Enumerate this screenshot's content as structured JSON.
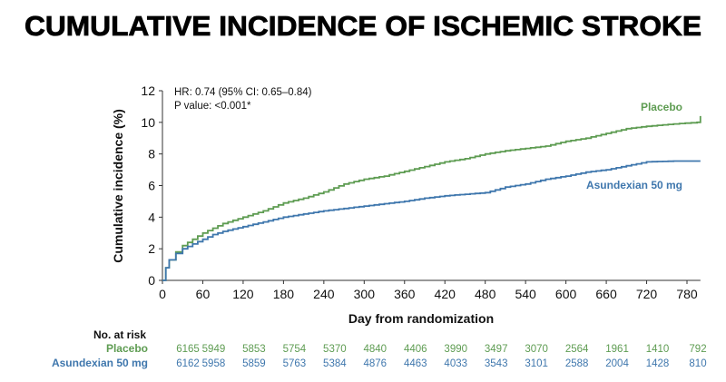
{
  "title": "CUMULATIVE INCIDENCE OF ISCHEMIC STROKE",
  "chart_data": {
    "type": "line",
    "title": "CUMULATIVE INCIDENCE OF ISCHEMIC STROKE",
    "xlabel": "Day from randomization",
    "ylabel": "Cumulative incidence (%)",
    "xlim": [
      0,
      800
    ],
    "ylim": [
      0,
      12
    ],
    "xticks": [
      0,
      60,
      120,
      180,
      240,
      300,
      360,
      420,
      480,
      540,
      600,
      660,
      720,
      780
    ],
    "yticks": [
      0,
      2,
      4,
      6,
      8,
      10,
      12
    ],
    "grid": false,
    "step": true,
    "annotations": [
      "HR: 0.74 (95% CI: 0.65–0.84)",
      "P value: <0.001*"
    ],
    "series": [
      {
        "name": "Placebo",
        "color": "#5e9c52",
        "x": [
          0,
          5,
          10,
          20,
          30,
          45,
          60,
          75,
          90,
          120,
          150,
          180,
          210,
          240,
          270,
          300,
          330,
          360,
          390,
          420,
          450,
          480,
          510,
          540,
          570,
          600,
          630,
          660,
          690,
          720,
          760,
          795,
          800
        ],
        "y": [
          0,
          0.8,
          1.3,
          1.8,
          2.2,
          2.6,
          3.0,
          3.3,
          3.6,
          4.0,
          4.4,
          4.9,
          5.2,
          5.6,
          6.1,
          6.4,
          6.6,
          6.9,
          7.2,
          7.5,
          7.7,
          8.0,
          8.2,
          8.35,
          8.5,
          8.8,
          9.0,
          9.3,
          9.6,
          9.75,
          9.9,
          10.0,
          10.4
        ]
      },
      {
        "name": "Asundexian 50 mg",
        "color": "#3f77ad",
        "x": [
          0,
          5,
          10,
          20,
          30,
          45,
          60,
          75,
          90,
          120,
          150,
          180,
          210,
          240,
          270,
          300,
          330,
          360,
          390,
          420,
          450,
          480,
          510,
          540,
          570,
          600,
          630,
          660,
          690,
          720,
          760,
          800
        ],
        "y": [
          0,
          0.8,
          1.3,
          1.7,
          2.0,
          2.3,
          2.6,
          2.9,
          3.1,
          3.4,
          3.7,
          4.0,
          4.2,
          4.4,
          4.55,
          4.7,
          4.85,
          5.0,
          5.2,
          5.35,
          5.45,
          5.55,
          5.9,
          6.1,
          6.4,
          6.6,
          6.85,
          7.0,
          7.25,
          7.5,
          7.55,
          7.55
        ]
      }
    ],
    "risk_table": {
      "header": "No. at risk",
      "rows": [
        {
          "label": "Placebo",
          "values": [
            "6165",
            "5949",
            "5853",
            "5754",
            "5370",
            "4840",
            "4406",
            "3990",
            "3497",
            "3070",
            "2564",
            "1961",
            "1410",
            "792"
          ]
        },
        {
          "label": "Asundexian 50 mg",
          "values": [
            "6162",
            "5958",
            "5859",
            "5763",
            "5384",
            "4876",
            "4463",
            "4033",
            "3543",
            "3101",
            "2588",
            "2004",
            "1428",
            "810"
          ]
        }
      ]
    }
  }
}
